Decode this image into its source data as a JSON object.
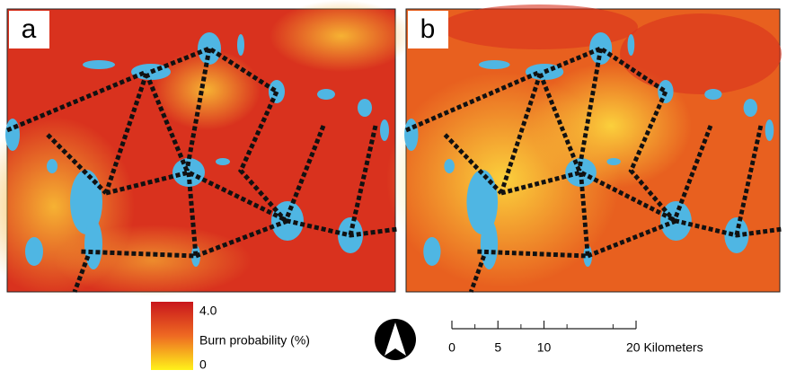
{
  "panels": [
    {
      "label": "a"
    },
    {
      "label": "b"
    }
  ],
  "legend": {
    "max": {
      "value": 4,
      "label": "4.0"
    },
    "title": "Burn probability (%)",
    "min": 0
  },
  "scale_bar": {
    "ticks": [
      0,
      5,
      10,
      {
        "value": 20,
        "label": "20 Kilometers"
      }
    ]
  }
}
